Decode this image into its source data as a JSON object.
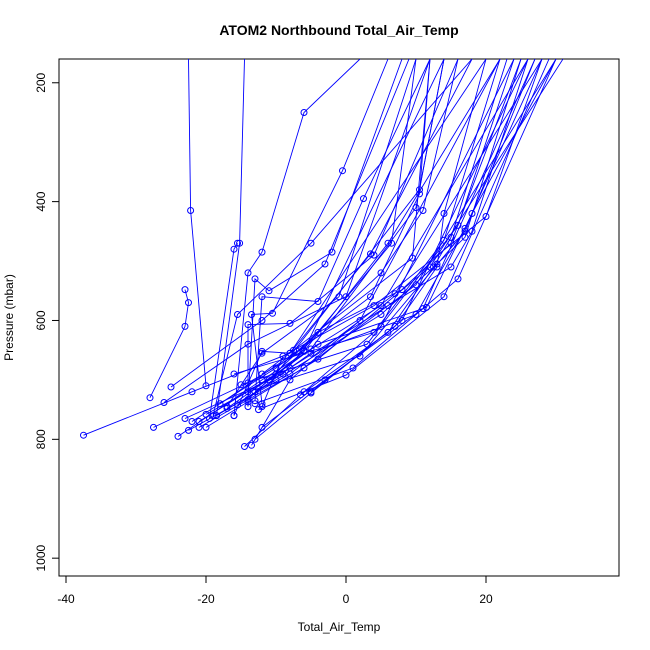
{
  "chart_data": {
    "type": "line",
    "title": "ATOM2 Northbound Total_Air_Temp",
    "xlabel": "Total_Air_Temp",
    "ylabel": "Pressure (mbar)",
    "xlim": [
      -41,
      39
    ],
    "ylim": [
      1030,
      160
    ],
    "y_reversed": true,
    "xticks": [
      -40,
      -20,
      0,
      20
    ],
    "yticks": [
      200,
      400,
      600,
      800,
      1000
    ],
    "grid": false,
    "legend": "none",
    "line_color": "#0000ff",
    "marker": "open-circle",
    "series": [
      {
        "points": [
          [
            -22.5,
            160
          ],
          [
            -22.2,
            415
          ],
          [
            -20,
            710
          ]
        ]
      },
      {
        "points": [
          [
            -14.5,
            160
          ],
          [
            -15.2,
            470
          ],
          [
            -18.5,
            760
          ]
        ]
      },
      {
        "points": [
          [
            -37.5,
            793
          ],
          [
            -22,
            720
          ],
          [
            -8,
            655
          ],
          [
            20,
            160
          ]
        ]
      },
      {
        "points": [
          [
            -27.5,
            780
          ],
          [
            -14,
            705
          ],
          [
            -6,
            650
          ],
          [
            14,
            160
          ]
        ]
      },
      {
        "points": [
          [
            -28,
            730
          ],
          [
            -23,
            610
          ],
          [
            -22.5,
            570
          ],
          [
            -23,
            548
          ]
        ]
      },
      {
        "points": [
          [
            -24,
            795
          ],
          [
            -12,
            700
          ],
          [
            5,
            575
          ],
          [
            26,
            160
          ]
        ]
      },
      {
        "points": [
          [
            -22.5,
            785
          ],
          [
            -8,
            690
          ],
          [
            7,
            555
          ],
          [
            28,
            160
          ]
        ]
      },
      {
        "points": [
          [
            -21,
            780
          ],
          [
            -6,
            680
          ],
          [
            10,
            540
          ],
          [
            30,
            160
          ]
        ]
      },
      {
        "points": [
          [
            -20,
            780
          ],
          [
            -4,
            665
          ],
          [
            12,
            510
          ],
          [
            31,
            160
          ]
        ]
      },
      {
        "points": [
          [
            -26,
            738
          ],
          [
            -14,
            640
          ],
          [
            0,
            560
          ],
          [
            12,
            160
          ]
        ]
      },
      {
        "points": [
          [
            -25,
            712
          ],
          [
            -12,
            600
          ],
          [
            -3,
            505
          ],
          [
            9,
            160
          ]
        ]
      },
      {
        "points": [
          [
            -13.5,
            810
          ],
          [
            -8,
            700
          ],
          [
            2,
            600
          ],
          [
            22,
            160
          ]
        ]
      },
      {
        "points": [
          [
            -14.5,
            812
          ],
          [
            -6,
            720
          ],
          [
            5,
            610
          ],
          [
            24,
            160
          ]
        ]
      },
      {
        "points": [
          [
            -13,
            800
          ],
          [
            -5,
            722
          ],
          [
            8,
            600
          ],
          [
            26,
            160
          ]
        ]
      },
      {
        "points": [
          [
            -12,
            780
          ],
          [
            -3,
            700
          ],
          [
            11,
            580
          ],
          [
            27,
            160
          ]
        ]
      },
      {
        "points": [
          [
            -12.5,
            750
          ],
          [
            0,
            692
          ],
          [
            14,
            560
          ],
          [
            29,
            160
          ]
        ]
      },
      {
        "points": [
          [
            -13,
            740
          ],
          [
            1,
            680
          ],
          [
            16,
            530
          ],
          [
            30,
            160
          ]
        ]
      },
      {
        "points": [
          [
            -14,
            720
          ],
          [
            2,
            660
          ],
          [
            17,
            450
          ],
          [
            27,
            160
          ]
        ]
      },
      {
        "points": [
          [
            -15,
            708
          ],
          [
            3,
            640
          ],
          [
            16,
            440
          ],
          [
            24,
            160
          ]
        ]
      },
      {
        "points": [
          [
            -16,
            690
          ],
          [
            4,
            620
          ],
          [
            14,
            465
          ],
          [
            22,
            160
          ]
        ]
      },
      {
        "points": [
          [
            -17,
            745
          ],
          [
            -12,
            655
          ],
          [
            -1,
            560
          ],
          [
            10,
            160
          ]
        ]
      },
      {
        "points": [
          [
            -12,
            745
          ],
          [
            -9,
            660
          ],
          [
            4,
            575
          ],
          [
            20,
            425
          ],
          [
            28,
            160
          ]
        ]
      },
      {
        "points": [
          [
            -16,
            760
          ],
          [
            -14,
            520
          ],
          [
            -12,
            485
          ],
          [
            -6,
            250
          ],
          [
            2,
            160
          ]
        ]
      },
      {
        "points": [
          [
            -14,
            737
          ],
          [
            -13,
            530
          ],
          [
            -11,
            550
          ],
          [
            -2,
            485
          ],
          [
            8,
            160
          ]
        ]
      },
      {
        "points": [
          [
            -13,
            735
          ],
          [
            -12,
            560
          ],
          [
            -4,
            568
          ],
          [
            2.5,
            395
          ],
          [
            12,
            160
          ]
        ]
      },
      {
        "points": [
          [
            -12,
            740
          ],
          [
            -13.5,
            590
          ],
          [
            -10.5,
            588
          ],
          [
            -0.5,
            348
          ],
          [
            6,
            160
          ]
        ]
      },
      {
        "points": [
          [
            -14,
            745
          ],
          [
            -14,
            607
          ],
          [
            -8,
            605
          ],
          [
            4,
            490
          ],
          [
            16,
            160
          ]
        ]
      },
      {
        "points": [
          [
            -19,
            760
          ],
          [
            -15.5,
            590
          ],
          [
            -5,
            470
          ],
          [
            18,
            160
          ]
        ]
      },
      {
        "points": [
          [
            -19.5,
            765
          ],
          [
            -16,
            480
          ],
          [
            -15.5,
            470
          ]
        ]
      },
      {
        "points": [
          [
            -16,
            760
          ],
          [
            -12,
            652
          ],
          [
            -8,
            655
          ],
          [
            3.5,
            488
          ],
          [
            18,
            160
          ]
        ]
      },
      {
        "points": [
          [
            -13,
            720
          ],
          [
            -6,
            652
          ],
          [
            6,
            470
          ],
          [
            22,
            160
          ]
        ]
      },
      {
        "points": [
          [
            -11,
            700
          ],
          [
            -5,
            648
          ],
          [
            10,
            410
          ],
          [
            14,
            160
          ]
        ]
      },
      {
        "points": [
          [
            -18,
            740
          ],
          [
            -7,
            652
          ],
          [
            5,
            520
          ],
          [
            11,
            415
          ],
          [
            16,
            160
          ]
        ]
      },
      {
        "points": [
          [
            -12,
            690
          ],
          [
            -7.5,
            650
          ],
          [
            9.5,
            495
          ],
          [
            12,
            160
          ]
        ]
      },
      {
        "points": [
          [
            -5,
            720
          ],
          [
            7,
            610
          ],
          [
            13,
            510
          ],
          [
            14,
            420
          ],
          [
            20,
            160
          ]
        ]
      },
      {
        "points": [
          [
            -6.5,
            725
          ],
          [
            6,
            620
          ],
          [
            12.5,
            510
          ],
          [
            15,
            460
          ],
          [
            23,
            160
          ]
        ]
      },
      {
        "points": [
          [
            -18.5,
            760
          ],
          [
            -10,
            700
          ],
          [
            5,
            590
          ],
          [
            13,
            505
          ],
          [
            17,
            460
          ],
          [
            25,
            160
          ]
        ]
      },
      {
        "points": [
          [
            -20,
            758
          ],
          [
            -8,
            680
          ],
          [
            6,
            575
          ],
          [
            15,
            510
          ],
          [
            18,
            450
          ],
          [
            26,
            160
          ]
        ]
      },
      {
        "points": [
          [
            -22,
            770
          ],
          [
            -10,
            680
          ],
          [
            3.5,
            560
          ],
          [
            10.5,
            387
          ],
          [
            12,
            160
          ]
        ]
      },
      {
        "points": [
          [
            -23,
            765
          ],
          [
            -9,
            690
          ],
          [
            6.5,
            470
          ],
          [
            10,
            160
          ]
        ]
      },
      {
        "points": [
          [
            -21,
            770
          ],
          [
            -10,
            690
          ],
          [
            10.5,
            380
          ],
          [
            14,
            160
          ]
        ]
      },
      {
        "points": [
          [
            -17,
            748
          ],
          [
            -4,
            640
          ],
          [
            11.5,
            578
          ],
          [
            18,
            420
          ],
          [
            30,
            160
          ]
        ]
      },
      {
        "points": [
          [
            -15.5,
            742
          ],
          [
            -5,
            655
          ],
          [
            10,
            590
          ],
          [
            17,
            445
          ],
          [
            28,
            160
          ]
        ]
      },
      {
        "points": [
          [
            -14,
            733
          ],
          [
            -4,
            620
          ],
          [
            8,
            548
          ],
          [
            15,
            470
          ],
          [
            25,
            160
          ]
        ]
      }
    ]
  }
}
